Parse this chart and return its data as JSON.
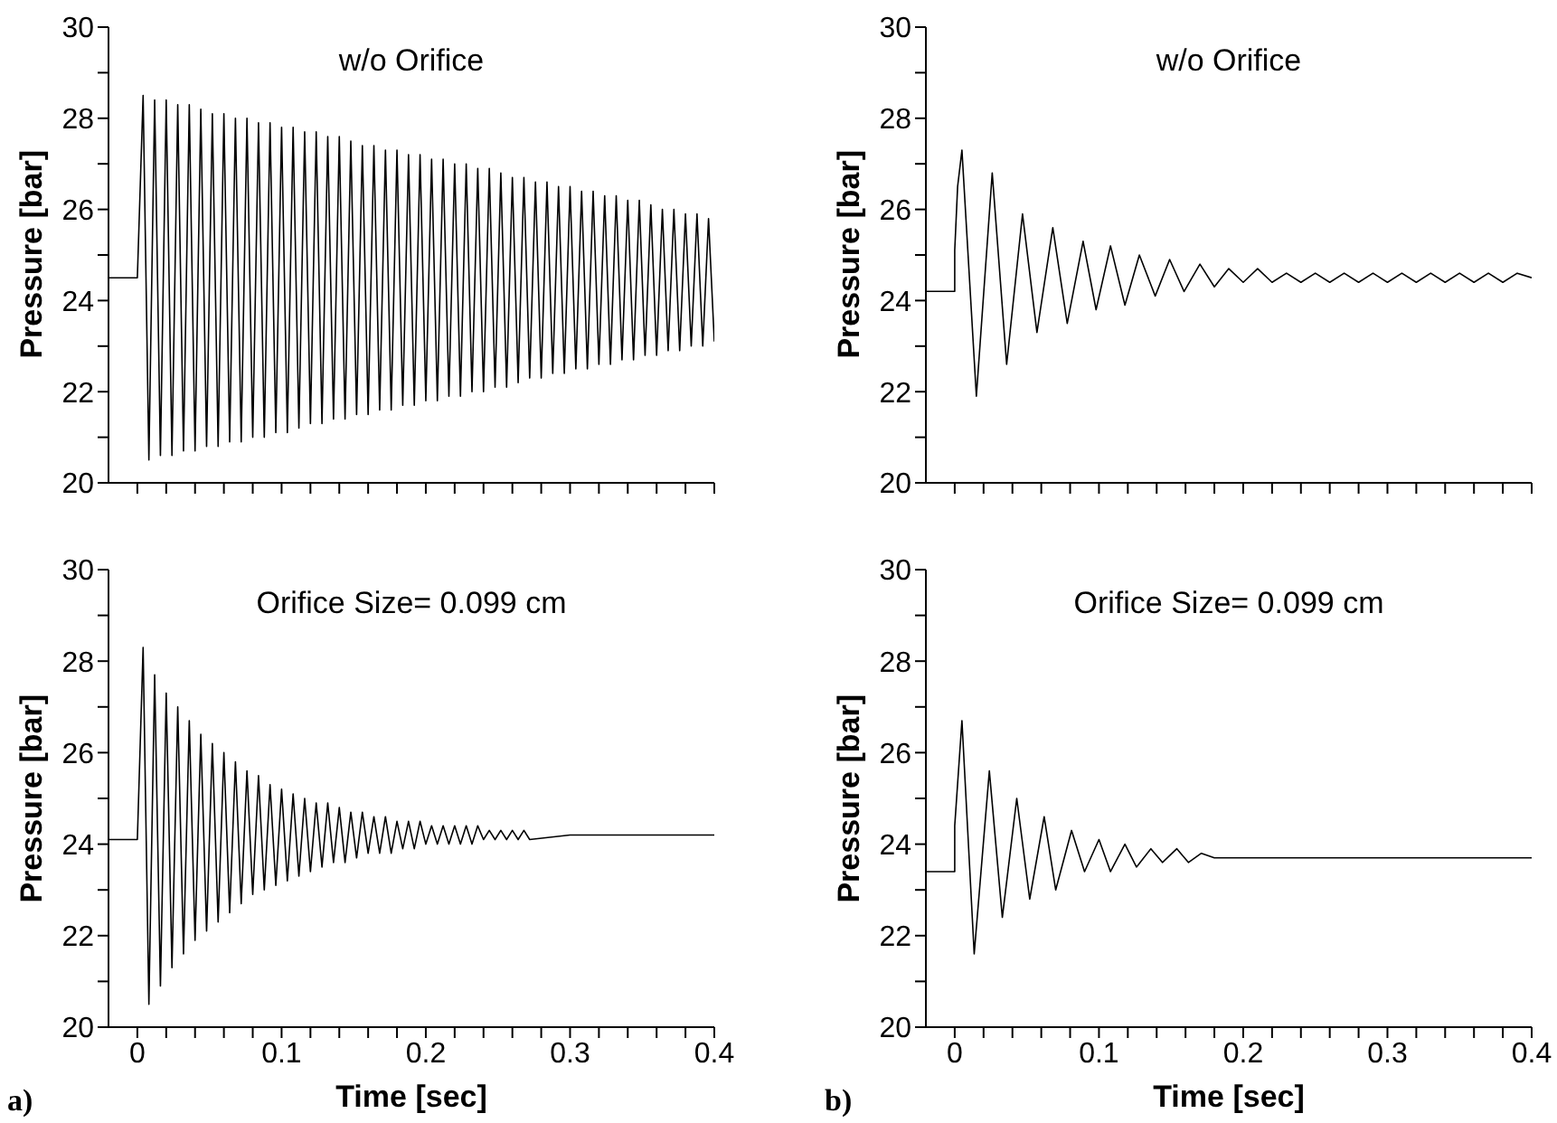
{
  "chart_data": [
    {
      "type": "line",
      "ylabel": "Pressure [bar]",
      "annotations": [
        "w/o Orifice"
      ],
      "xlim": [
        -0.02,
        0.4
      ],
      "ylim": [
        20,
        30
      ],
      "tick_labels": "y",
      "xticks": [
        0,
        0.02,
        0.04,
        0.06,
        0.08,
        0.1,
        0.12,
        0.14,
        0.16,
        0.18,
        0.2,
        0.22,
        0.24,
        0.26,
        0.28,
        0.3,
        0.32,
        0.34,
        0.36,
        0.38,
        0.4
      ],
      "yticks": [
        20,
        {
          "value": 21,
          "label": null
        },
        22,
        {
          "value": 23,
          "label": null
        },
        24,
        {
          "value": 25,
          "label": null
        },
        26,
        {
          "value": 27,
          "label": null
        },
        28,
        {
          "value": 29,
          "label": null
        },
        30
      ],
      "series": [
        {
          "color": "#000000",
          "x": [
            -0.02,
            0,
            0.004,
            0.008,
            0.012,
            0.016,
            0.02,
            0.024,
            0.028,
            0.032,
            0.036,
            0.04,
            0.044,
            0.048,
            0.052,
            0.056,
            0.06,
            0.064,
            0.068,
            0.072,
            0.076,
            0.08,
            0.084,
            0.088,
            0.092,
            0.096,
            0.1,
            0.104,
            0.108,
            0.112,
            0.116,
            0.12,
            0.124,
            0.128,
            0.132,
            0.136,
            0.14,
            0.144,
            0.148,
            0.152,
            0.156,
            0.16,
            0.164,
            0.168,
            0.172,
            0.176,
            0.18,
            0.184,
            0.188,
            0.192,
            0.196,
            0.2,
            0.204,
            0.208,
            0.212,
            0.216,
            0.22,
            0.224,
            0.228,
            0.232,
            0.236,
            0.24,
            0.244,
            0.248,
            0.252,
            0.256,
            0.26,
            0.264,
            0.268,
            0.272,
            0.276,
            0.28,
            0.284,
            0.288,
            0.292,
            0.296,
            0.3,
            0.304,
            0.308,
            0.312,
            0.316,
            0.32,
            0.324,
            0.328,
            0.332,
            0.336,
            0.34,
            0.344,
            0.348,
            0.352,
            0.356,
            0.36,
            0.364,
            0.368,
            0.372,
            0.376,
            0.38,
            0.384,
            0.388,
            0.392,
            0.396,
            0.4
          ],
          "values": [
            24.5,
            24.5,
            28.5,
            20.5,
            28.4,
            20.6,
            28.4,
            20.6,
            28.3,
            20.7,
            28.3,
            20.7,
            28.2,
            20.8,
            28.1,
            20.8,
            28.1,
            20.9,
            28.0,
            20.9,
            28.0,
            21.0,
            27.9,
            21.0,
            27.9,
            21.1,
            27.8,
            21.1,
            27.8,
            21.2,
            27.7,
            21.3,
            27.7,
            21.3,
            27.6,
            21.4,
            27.6,
            21.4,
            27.5,
            21.5,
            27.4,
            21.5,
            27.4,
            21.6,
            27.3,
            21.6,
            27.3,
            21.7,
            27.2,
            21.7,
            27.2,
            21.8,
            27.1,
            21.8,
            27.1,
            21.9,
            27.0,
            21.9,
            27.0,
            22.0,
            26.9,
            22.0,
            26.9,
            22.1,
            26.8,
            22.1,
            26.7,
            22.2,
            26.7,
            22.3,
            26.6,
            22.3,
            26.6,
            22.4,
            26.5,
            22.4,
            26.5,
            22.5,
            26.4,
            22.5,
            26.4,
            22.6,
            26.3,
            22.6,
            26.3,
            22.7,
            26.2,
            22.7,
            26.2,
            22.8,
            26.1,
            22.8,
            26.0,
            22.9,
            26.0,
            22.9,
            25.9,
            23.0,
            25.9,
            23.0,
            25.8,
            23.1
          ]
        }
      ]
    },
    {
      "type": "line",
      "ylabel": "Pressure [bar]",
      "annotations": [
        "w/o Orifice"
      ],
      "xlim": [
        -0.02,
        0.4
      ],
      "ylim": [
        20,
        30
      ],
      "tick_labels": "y",
      "xticks": [
        0,
        0.02,
        0.04,
        0.06,
        0.08,
        0.1,
        0.12,
        0.14,
        0.16,
        0.18,
        0.2,
        0.22,
        0.24,
        0.26,
        0.28,
        0.3,
        0.32,
        0.34,
        0.36,
        0.38,
        0.4
      ],
      "yticks": [
        20,
        {
          "value": 21,
          "label": null
        },
        22,
        {
          "value": 23,
          "label": null
        },
        24,
        {
          "value": 25,
          "label": null
        },
        26,
        {
          "value": 27,
          "label": null
        },
        28,
        {
          "value": 29,
          "label": null
        },
        30
      ],
      "series": [
        {
          "color": "#000000",
          "x": [
            -0.02,
            0,
            0,
            0.002,
            0.005,
            0.015,
            0.026,
            0.036,
            0.047,
            0.057,
            0.068,
            0.078,
            0.089,
            0.098,
            0.108,
            0.118,
            0.128,
            0.139,
            0.149,
            0.159,
            0.17,
            0.18,
            0.19,
            0.2,
            0.21,
            0.22,
            0.23,
            0.24,
            0.25,
            0.26,
            0.27,
            0.28,
            0.29,
            0.3,
            0.31,
            0.32,
            0.33,
            0.34,
            0.35,
            0.36,
            0.37,
            0.38,
            0.39,
            0.4
          ],
          "values": [
            24.2,
            24.2,
            25.1,
            26.5,
            27.3,
            21.9,
            26.8,
            22.6,
            25.9,
            23.3,
            25.6,
            23.5,
            25.3,
            23.8,
            25.2,
            23.9,
            25.0,
            24.1,
            24.9,
            24.2,
            24.8,
            24.3,
            24.7,
            24.4,
            24.7,
            24.4,
            24.6,
            24.4,
            24.6,
            24.4,
            24.6,
            24.4,
            24.6,
            24.4,
            24.6,
            24.4,
            24.6,
            24.4,
            24.6,
            24.4,
            24.6,
            24.4,
            24.6,
            24.5
          ]
        }
      ]
    },
    {
      "type": "line",
      "xlabel": "Time [sec]",
      "ylabel": "Pressure [bar]",
      "annotations": [
        "Orifice Size= 0.099 cm",
        "a)"
      ],
      "xlim": [
        -0.02,
        0.4
      ],
      "ylim": [
        20,
        30
      ],
      "xticks": [
        0,
        {
          "value": 0.02,
          "label": null
        },
        {
          "value": 0.04,
          "label": null
        },
        {
          "value": 0.06,
          "label": null
        },
        {
          "value": 0.08,
          "label": null
        },
        {
          "value": 0.1,
          "label": "0.1"
        },
        {
          "value": 0.12,
          "label": null
        },
        {
          "value": 0.14,
          "label": null
        },
        {
          "value": 0.16,
          "label": null
        },
        {
          "value": 0.18,
          "label": null
        },
        {
          "value": 0.2,
          "label": "0.2"
        },
        {
          "value": 0.22,
          "label": null
        },
        {
          "value": 0.24,
          "label": null
        },
        {
          "value": 0.26,
          "label": null
        },
        {
          "value": 0.28,
          "label": null
        },
        {
          "value": 0.3,
          "label": "0.3"
        },
        {
          "value": 0.32,
          "label": null
        },
        {
          "value": 0.34,
          "label": null
        },
        {
          "value": 0.36,
          "label": null
        },
        {
          "value": 0.38,
          "label": null
        },
        {
          "value": 0.4,
          "label": "0.4"
        }
      ],
      "yticks": [
        20,
        {
          "value": 21,
          "label": null
        },
        22,
        {
          "value": 23,
          "label": null
        },
        24,
        {
          "value": 25,
          "label": null
        },
        26,
        {
          "value": 27,
          "label": null
        },
        28,
        {
          "value": 29,
          "label": null
        },
        30
      ],
      "series": [
        {
          "color": "#000000",
          "x": [
            -0.02,
            0,
            0.004,
            0.008,
            0.012,
            0.016,
            0.02,
            0.024,
            0.028,
            0.032,
            0.036,
            0.04,
            0.044,
            0.048,
            0.052,
            0.056,
            0.06,
            0.064,
            0.068,
            0.072,
            0.076,
            0.08,
            0.084,
            0.088,
            0.092,
            0.096,
            0.1,
            0.104,
            0.108,
            0.112,
            0.116,
            0.12,
            0.124,
            0.128,
            0.132,
            0.136,
            0.14,
            0.144,
            0.148,
            0.152,
            0.156,
            0.16,
            0.164,
            0.168,
            0.172,
            0.176,
            0.18,
            0.184,
            0.188,
            0.192,
            0.196,
            0.2,
            0.204,
            0.208,
            0.212,
            0.216,
            0.22,
            0.224,
            0.228,
            0.232,
            0.236,
            0.24,
            0.244,
            0.248,
            0.252,
            0.256,
            0.26,
            0.264,
            0.268,
            0.272,
            0.3,
            0.4
          ],
          "values": [
            24.1,
            24.1,
            28.3,
            20.5,
            27.7,
            20.9,
            27.3,
            21.3,
            27.0,
            21.6,
            26.7,
            21.9,
            26.4,
            22.1,
            26.2,
            22.3,
            26.0,
            22.5,
            25.8,
            22.7,
            25.6,
            22.9,
            25.5,
            23.0,
            25.3,
            23.1,
            25.2,
            23.2,
            25.1,
            23.3,
            25.0,
            23.4,
            24.9,
            23.5,
            24.9,
            23.6,
            24.8,
            23.6,
            24.7,
            23.7,
            24.7,
            23.8,
            24.6,
            23.8,
            24.6,
            23.8,
            24.5,
            23.9,
            24.5,
            23.9,
            24.5,
            24.0,
            24.4,
            24.0,
            24.4,
            24.0,
            24.4,
            24.0,
            24.4,
            24.0,
            24.4,
            24.1,
            24.3,
            24.1,
            24.3,
            24.1,
            24.3,
            24.1,
            24.3,
            24.1,
            24.2,
            24.2
          ]
        }
      ]
    },
    {
      "type": "line",
      "xlabel": "Time [sec]",
      "ylabel": "Pressure [bar]",
      "annotations": [
        "Orifice Size= 0.099 cm",
        "b)"
      ],
      "xlim": [
        -0.02,
        0.4
      ],
      "ylim": [
        20,
        30
      ],
      "xticks": [
        0,
        {
          "value": 0.02,
          "label": null
        },
        {
          "value": 0.04,
          "label": null
        },
        {
          "value": 0.06,
          "label": null
        },
        {
          "value": 0.08,
          "label": null
        },
        {
          "value": 0.1,
          "label": "0.1"
        },
        {
          "value": 0.12,
          "label": null
        },
        {
          "value": 0.14,
          "label": null
        },
        {
          "value": 0.16,
          "label": null
        },
        {
          "value": 0.18,
          "label": null
        },
        {
          "value": 0.2,
          "label": "0.2"
        },
        {
          "value": 0.22,
          "label": null
        },
        {
          "value": 0.24,
          "label": null
        },
        {
          "value": 0.26,
          "label": null
        },
        {
          "value": 0.28,
          "label": null
        },
        {
          "value": 0.3,
          "label": "0.3"
        },
        {
          "value": 0.32,
          "label": null
        },
        {
          "value": 0.34,
          "label": null
        },
        {
          "value": 0.36,
          "label": null
        },
        {
          "value": 0.38,
          "label": null
        },
        {
          "value": 0.4,
          "label": "0.4"
        }
      ],
      "yticks": [
        20,
        {
          "value": 21,
          "label": null
        },
        22,
        {
          "value": 23,
          "label": null
        },
        24,
        {
          "value": 25,
          "label": null
        },
        26,
        {
          "value": 27,
          "label": null
        },
        28,
        {
          "value": 29,
          "label": null
        },
        30
      ],
      "series": [
        {
          "color": "#000000",
          "x": [
            -0.02,
            0,
            0,
            0.005,
            0.0135,
            0.024,
            0.033,
            0.043,
            0.052,
            0.062,
            0.07,
            0.081,
            0.09,
            0.1,
            0.108,
            0.118,
            0.126,
            0.136,
            0.144,
            0.154,
            0.162,
            0.171,
            0.18,
            0.2,
            0.3,
            0.4
          ],
          "values": [
            23.4,
            23.4,
            24.4,
            26.7,
            21.6,
            25.6,
            22.4,
            25.0,
            22.8,
            24.6,
            23.0,
            24.3,
            23.4,
            24.1,
            23.4,
            24.0,
            23.5,
            23.9,
            23.6,
            23.9,
            23.6,
            23.8,
            23.7,
            23.7,
            23.7,
            23.7
          ]
        }
      ]
    }
  ]
}
